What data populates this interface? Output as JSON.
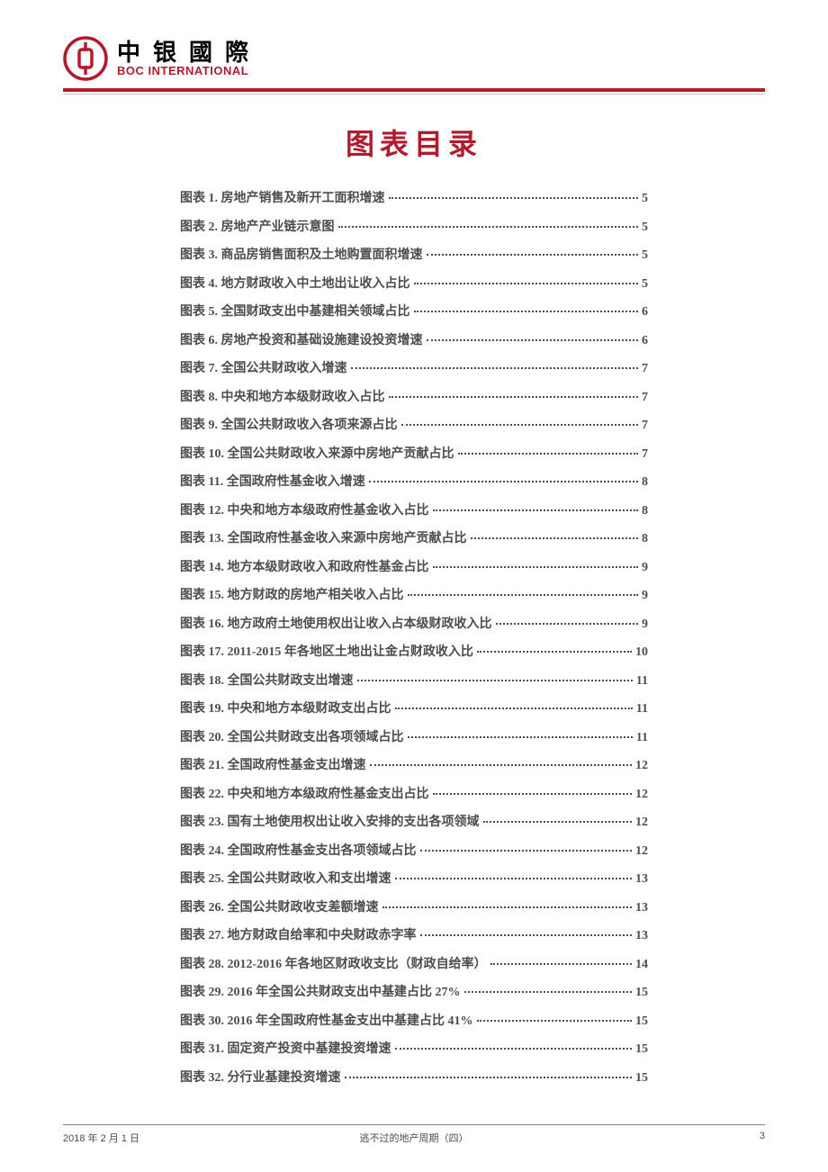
{
  "header": {
    "company_cn": "中银國際",
    "company_en": "BOC INTERNATIONAL",
    "logo_color": "#b01c2e"
  },
  "title": "图表目录",
  "toc": {
    "entries": [
      {
        "label": "图表 1. 房地产销售及新开工面积增速",
        "page": "5"
      },
      {
        "label": "图表 2. 房地产产业链示意图",
        "page": "5"
      },
      {
        "label": "图表 3. 商品房销售面积及土地购置面积增速",
        "page": "5"
      },
      {
        "label": "图表 4. 地方财政收入中土地出让收入占比",
        "page": "5"
      },
      {
        "label": "图表 5. 全国财政支出中基建相关领域占比",
        "page": "6"
      },
      {
        "label": "图表 6. 房地产投资和基础设施建设投资增速",
        "page": "6"
      },
      {
        "label": "图表 7. 全国公共财政收入增速",
        "page": "7"
      },
      {
        "label": "图表 8. 中央和地方本级财政收入占比",
        "page": "7"
      },
      {
        "label": "图表 9. 全国公共财政收入各项来源占比",
        "page": "7"
      },
      {
        "label": "图表 10. 全国公共财政收入来源中房地产贡献占比",
        "page": "7"
      },
      {
        "label": "图表 11. 全国政府性基金收入增速",
        "page": "8"
      },
      {
        "label": "图表 12. 中央和地方本级政府性基金收入占比",
        "page": "8"
      },
      {
        "label": "图表 13. 全国政府性基金收入来源中房地产贡献占比",
        "page": "8"
      },
      {
        "label": "图表 14. 地方本级财政收入和政府性基金占比",
        "page": "9"
      },
      {
        "label": "图表 15. 地方财政的房地产相关收入占比",
        "page": "9"
      },
      {
        "label": "图表 16. 地方政府土地使用权出让收入占本级财政收入比",
        "page": "9"
      },
      {
        "label": "图表 17. 2011-2015 年各地区土地出让金占财政收入比",
        "page": "10"
      },
      {
        "label": "图表 18. 全国公共财政支出增速",
        "page": "11"
      },
      {
        "label": "图表 19. 中央和地方本级财政支出占比",
        "page": "11"
      },
      {
        "label": "图表 20. 全国公共财政支出各项领域占比",
        "page": "11"
      },
      {
        "label": "图表 21. 全国政府性基金支出增速",
        "page": "12"
      },
      {
        "label": "图表 22. 中央和地方本级政府性基金支出占比",
        "page": "12"
      },
      {
        "label": "图表 23. 国有土地使用权出让收入安排的支出各项领域",
        "page": "12"
      },
      {
        "label": "图表 24. 全国政府性基金支出各项领域占比",
        "page": "12"
      },
      {
        "label": "图表 25. 全国公共财政收入和支出增速",
        "page": "13"
      },
      {
        "label": "图表 26. 全国公共财政收支差额增速",
        "page": "13"
      },
      {
        "label": "图表 27. 地方财政自给率和中央财政赤字率",
        "page": "13"
      },
      {
        "label": "图表 28. 2012-2016 年各地区财政收支比（财政自给率）",
        "page": "14"
      },
      {
        "label": "图表 29. 2016 年全国公共财政支出中基建占比 27%",
        "page": "15"
      },
      {
        "label": "图表 30. 2016 年全国政府性基金支出中基建占比 41%",
        "page": "15"
      },
      {
        "label": "图表 31. 固定资产投资中基建投资增速",
        "page": "15"
      },
      {
        "label": "图表 32. 分行业基建投资增速",
        "page": "15"
      }
    ]
  },
  "footer": {
    "date": "2018 年 2 月 1 日",
    "title": "逃不过的地产周期（四）",
    "page": "3"
  },
  "colors": {
    "brand_red": "#b01c2e",
    "text_gray": "#4d4d4d",
    "rule_gray": "#c0c0c0",
    "footer_rule": "#808080"
  }
}
